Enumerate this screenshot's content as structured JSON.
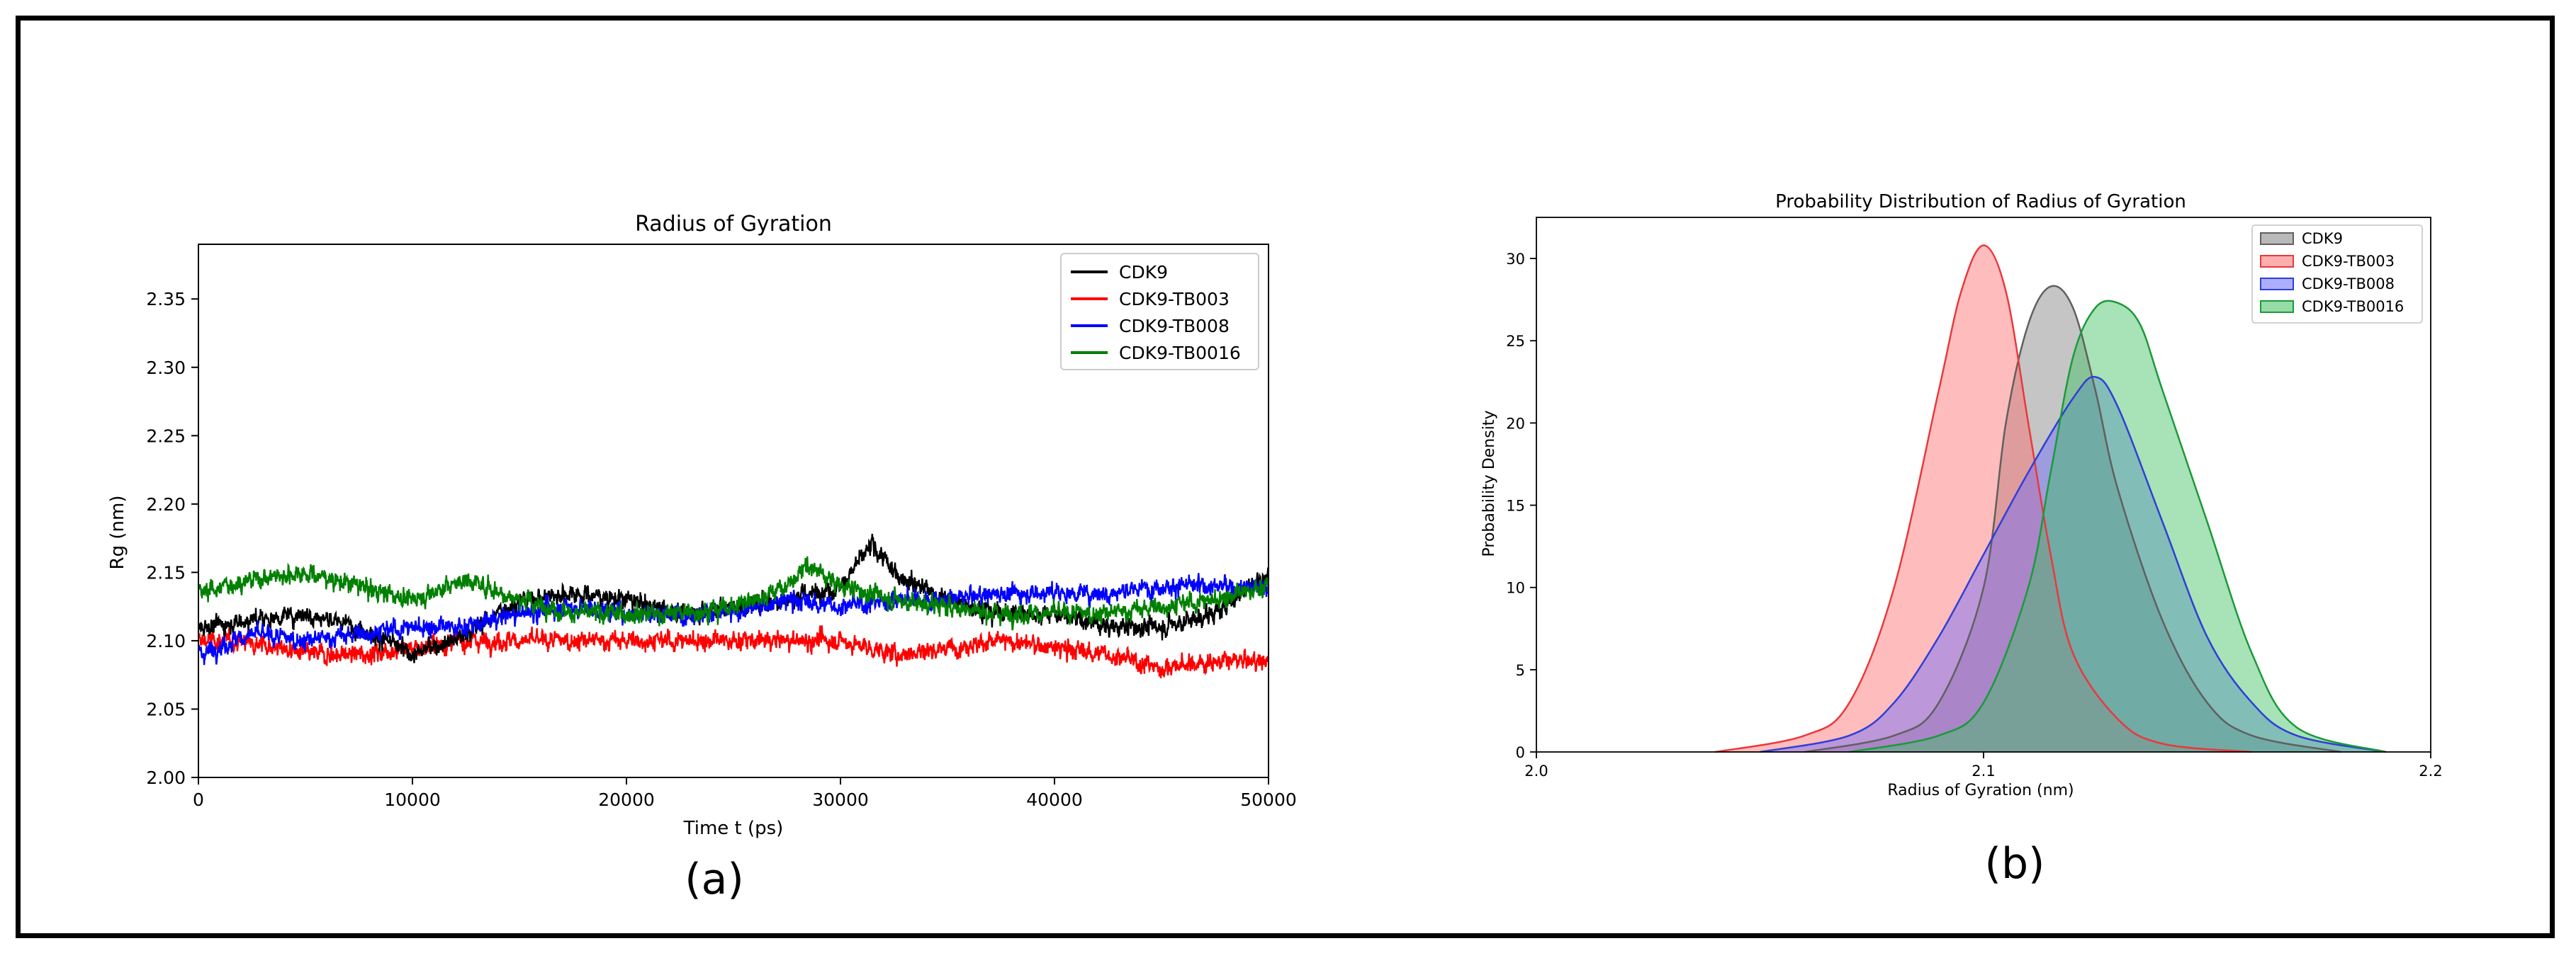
{
  "panels": [
    "(a)",
    "(b)"
  ],
  "chart_data": [
    {
      "type": "line",
      "title": "Radius of Gyration",
      "xlabel": "Time t (ps)",
      "ylabel": "Rg (nm)",
      "xlim": [
        0,
        50000
      ],
      "ylim": [
        2.0,
        2.39
      ],
      "xticks": [
        "0",
        "10000",
        "20000",
        "30000",
        "40000",
        "50000"
      ],
      "yticks": [
        "2.00",
        "2.05",
        "2.10",
        "2.15",
        "2.20",
        "2.25",
        "2.30",
        "2.35"
      ],
      "grid": false,
      "legend": "top-right",
      "series": [
        {
          "name": "CDK9",
          "color": "#000000",
          "x": [
            0,
            2500,
            5000,
            7500,
            10000,
            12500,
            15000,
            17500,
            20000,
            22500,
            25000,
            27500,
            30000,
            31500,
            32500,
            35000,
            37500,
            40000,
            42500,
            45000,
            47500,
            50000
          ],
          "y": [
            2.11,
            2.115,
            2.12,
            2.11,
            2.09,
            2.105,
            2.13,
            2.135,
            2.13,
            2.12,
            2.125,
            2.13,
            2.14,
            2.17,
            2.15,
            2.13,
            2.12,
            2.12,
            2.11,
            2.11,
            2.12,
            2.15
          ]
        },
        {
          "name": "CDK9-TB003",
          "color": "#ff0000",
          "x": [
            0,
            2500,
            5000,
            7500,
            10000,
            12500,
            15000,
            17500,
            20000,
            22500,
            25000,
            27500,
            30000,
            32500,
            35000,
            37500,
            40000,
            42500,
            45000,
            47500,
            50000
          ],
          "y": [
            2.1,
            2.1,
            2.09,
            2.09,
            2.095,
            2.1,
            2.1,
            2.1,
            2.1,
            2.1,
            2.1,
            2.1,
            2.1,
            2.09,
            2.095,
            2.1,
            2.095,
            2.09,
            2.08,
            2.085,
            2.085
          ]
        },
        {
          "name": "CDK9-TB008",
          "color": "#0000ff",
          "x": [
            0,
            2500,
            5000,
            7500,
            10000,
            12500,
            15000,
            17500,
            20000,
            22500,
            25000,
            27500,
            30000,
            32500,
            35000,
            37500,
            40000,
            42500,
            45000,
            47500,
            50000
          ],
          "y": [
            2.09,
            2.105,
            2.1,
            2.105,
            2.11,
            2.11,
            2.12,
            2.125,
            2.12,
            2.12,
            2.12,
            2.13,
            2.125,
            2.13,
            2.13,
            2.135,
            2.135,
            2.135,
            2.14,
            2.14,
            2.14
          ]
        },
        {
          "name": "CDK9-TB0016",
          "color": "#008000",
          "x": [
            0,
            2500,
            5000,
            7500,
            10000,
            12500,
            15000,
            17500,
            20000,
            22500,
            25000,
            27500,
            28500,
            30000,
            32500,
            35000,
            37500,
            40000,
            42500,
            45000,
            47500,
            50000
          ],
          "y": [
            2.135,
            2.145,
            2.15,
            2.14,
            2.13,
            2.145,
            2.13,
            2.12,
            2.12,
            2.12,
            2.125,
            2.14,
            2.155,
            2.14,
            2.13,
            2.125,
            2.12,
            2.12,
            2.12,
            2.125,
            2.13,
            2.14
          ]
        }
      ]
    },
    {
      "type": "area",
      "title": "Probability Distribution of Radius of Gyration",
      "xlabel": "Radius of Gyration (nm)",
      "ylabel": "Probability Density",
      "xlim": [
        2.0,
        2.2
      ],
      "ylim": [
        0,
        32.5
      ],
      "xticks": [
        "2.0",
        "2.1",
        "2.2"
      ],
      "yticks": [
        "0",
        "5",
        "10",
        "15",
        "20",
        "25",
        "30"
      ],
      "grid": false,
      "legend": "top-right",
      "series": [
        {
          "name": "CDK9",
          "color": "#606060",
          "fill": "#7f7f7f",
          "x": [
            2.06,
            2.08,
            2.09,
            2.1,
            2.105,
            2.11,
            2.115,
            2.12,
            2.125,
            2.13,
            2.14,
            2.15,
            2.16,
            2.18
          ],
          "y": [
            0,
            1,
            3,
            10,
            20,
            26,
            28.3,
            27,
            22,
            16,
            8,
            3,
            1,
            0
          ]
        },
        {
          "name": "CDK9-TB003",
          "color": "#e8393d",
          "fill": "#ff6b6b",
          "x": [
            2.04,
            2.06,
            2.07,
            2.08,
            2.09,
            2.095,
            2.1,
            2.105,
            2.11,
            2.115,
            2.12,
            2.13,
            2.14,
            2.16
          ],
          "y": [
            0,
            1,
            3,
            10,
            22,
            28,
            30.8,
            28,
            20,
            12,
            6,
            2,
            0.5,
            0
          ]
        },
        {
          "name": "CDK9-TB008",
          "color": "#2e3fd6",
          "fill": "#6b6bff",
          "x": [
            2.05,
            2.07,
            2.08,
            2.09,
            2.1,
            2.11,
            2.12,
            2.125,
            2.13,
            2.14,
            2.15,
            2.16,
            2.17,
            2.19
          ],
          "y": [
            0,
            1,
            3,
            7,
            12,
            17,
            21.5,
            22.8,
            21,
            14,
            7,
            3,
            1,
            0
          ]
        },
        {
          "name": "CDK9-TB0016",
          "color": "#1a9a3a",
          "fill": "#3fbf5f",
          "x": [
            2.07,
            2.09,
            2.1,
            2.11,
            2.115,
            2.12,
            2.125,
            2.13,
            2.135,
            2.14,
            2.15,
            2.16,
            2.17,
            2.19
          ],
          "y": [
            0,
            1,
            3,
            10,
            17,
            24,
            27,
            27.3,
            26,
            22,
            14,
            6,
            1.5,
            0
          ]
        }
      ]
    }
  ]
}
